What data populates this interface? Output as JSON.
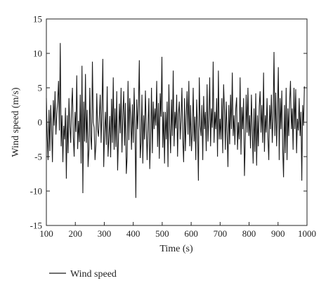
{
  "chart_data": {
    "type": "line",
    "title": "",
    "xlabel": "Time (s)",
    "ylabel": "Wind speed (m/s)",
    "xlim": [
      100,
      1000
    ],
    "ylim": [
      -15,
      15
    ],
    "x_ticks": [
      100,
      200,
      300,
      400,
      500,
      600,
      700,
      800,
      900,
      1000
    ],
    "y_ticks": [
      15,
      10,
      5,
      0,
      -5,
      -10,
      -15
    ],
    "grid": false,
    "legend_position": "bottom-left",
    "line_color": "#1a1a1a",
    "series": [
      {
        "name": "Wind speed",
        "x_start": 100,
        "x_step": 3,
        "values": [
          3.5,
          -2.1,
          -5.5,
          1.8,
          -4.2,
          2.5,
          -1.0,
          -5.8,
          3.2,
          -0.5,
          4.5,
          -1.8,
          1.2,
          3.0,
          6.0,
          -1.2,
          11.5,
          -3.5,
          1.0,
          -5.8,
          -0.5,
          -2.5,
          2.1,
          -8.2,
          1.0,
          -4.5,
          3.5,
          -0.6,
          -3.0,
          2.2,
          5.0,
          -2.2,
          -5.0,
          1.5,
          -1.4,
          6.8,
          -3.9,
          0.2,
          -2.9,
          4.0,
          -6.0,
          8.2,
          -10.3,
          3.0,
          -2.8,
          7.0,
          -3.0,
          1.8,
          -6.5,
          -3.9,
          5.0,
          -2.0,
          -4.0,
          8.8,
          0.0,
          -0.8,
          -5.5,
          -3.3,
          4.2,
          -1.0,
          -2.1,
          1.0,
          4.0,
          -3.0,
          2.0,
          9.2,
          -6.5,
          -1.5,
          1.5,
          -3.3,
          5.2,
          -5.0,
          -2.1,
          0.9,
          -5.1,
          3.4,
          -3.0,
          6.5,
          -4.0,
          2.0,
          -3.6,
          4.5,
          -7.0,
          -2.4,
          2.7,
          -1.6,
          5.0,
          -4.4,
          1.0,
          4.5,
          -3.4,
          2.8,
          -7.5,
          -5.0,
          6.0,
          -2.6,
          3.5,
          0.5,
          -4.0,
          2.6,
          -3.0,
          5.0,
          -0.8,
          -11.0,
          3.3,
          -1.0,
          2.5,
          9.0,
          -5.2,
          -3.0,
          4.0,
          -6.0,
          1.0,
          -2.5,
          4.6,
          -1.0,
          -5.5,
          -0.5,
          3.5,
          -6.8,
          -2.2,
          5.0,
          -4.5,
          3.0,
          -1.0,
          2.0,
          -0.5,
          6.0,
          -3.6,
          2.8,
          -5.3,
          4.2,
          0.8,
          9.5,
          -3.7,
          1.5,
          -6.0,
          1.5,
          -2.5,
          3.0,
          -6.5,
          5.5,
          -0.9,
          -4.5,
          3.3,
          -2.0,
          7.5,
          -3.5,
          1.5,
          -0.9,
          4.0,
          -5.0,
          1.2,
          3.0,
          -2.5,
          0.3,
          5.0,
          -2.5,
          -5.8,
          3.5,
          -4.2,
          1.0,
          4.5,
          -1.8,
          6.0,
          -3.5,
          2.5,
          -4.2,
          -1.5,
          5.0,
          -2.8,
          0.8,
          -5.5,
          3.3,
          -1.0,
          -8.5,
          6.5,
          -0.5,
          -2.0,
          2.5,
          -5.5,
          3.8,
          -1.0,
          1.5,
          -4.2,
          5.5,
          -2.8,
          0.5,
          6.5,
          -3.5,
          2.0,
          -0.8,
          8.8,
          -3.0,
          1.5,
          -1.0,
          3.5,
          -5.0,
          7.5,
          -2.5,
          0.5,
          -2.5,
          3.5,
          -4.5,
          5.5,
          1.8,
          -4.0,
          3.0,
          -1.5,
          -6.5,
          2.5,
          -3.2,
          4.0,
          -1.0,
          7.2,
          -2.0,
          1.0,
          -3.3,
          2.0,
          3.6,
          -4.0,
          0.0,
          -2.5,
          6.5,
          -4.7,
          2.2,
          -1.0,
          3.5,
          -7.8,
          -2.5,
          4.0,
          -1.5,
          5.0,
          -2.0,
          1.0,
          -3.8,
          4.0,
          -1.0,
          -6.0,
          2.0,
          -4.3,
          4.2,
          -6.3,
          1.0,
          -3.5,
          2.3,
          4.5,
          -1.5,
          2.5,
          -3.0,
          7.2,
          -4.3,
          1.0,
          -1.5,
          3.5,
          -2.2,
          -5.5,
          2.5,
          -1.0,
          4.0,
          -3.0,
          0.8,
          10.2,
          -2.0,
          4.3,
          -3.5,
          1.5,
          8.0,
          -5.5,
          3.5,
          -1.0,
          4.6,
          -3.8,
          -8.0,
          2.5,
          -4.5,
          5.0,
          -5.5,
          2.0,
          -2.0,
          3.0,
          6.0,
          -1.0,
          2.0,
          -4.0,
          5.0,
          -1.0,
          4.8,
          -4.5,
          0.5,
          -1.2,
          3.5,
          -2.0,
          1.5,
          -8.5,
          2.5,
          -0.5,
          5.2
        ],
        "line_width": 1.1
      }
    ]
  }
}
